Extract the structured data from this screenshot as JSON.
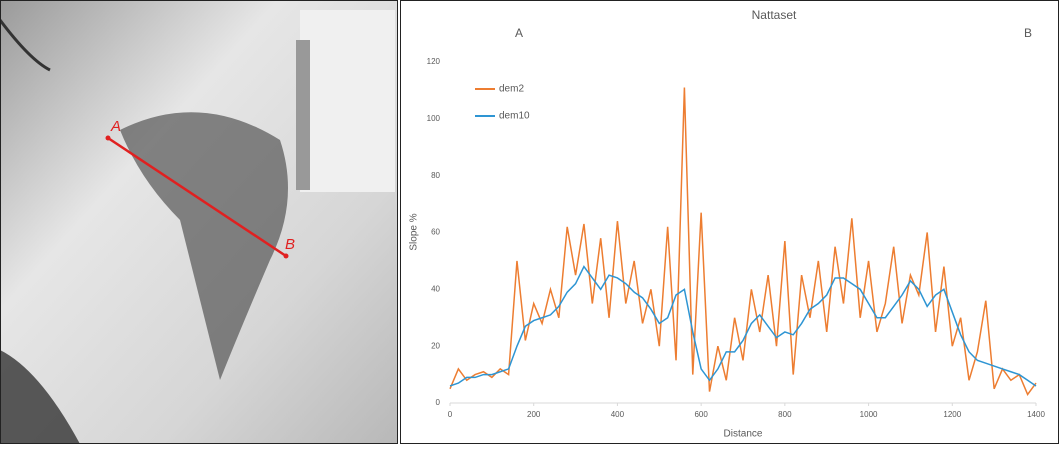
{
  "map": {
    "point_labels": [
      "A",
      "B"
    ]
  },
  "chart_data": {
    "type": "line",
    "title": "Nattaset",
    "annotations": [
      "A",
      "B"
    ],
    "x_label": "Distance",
    "y_label": "Slope %",
    "x": [
      0,
      20,
      40,
      60,
      80,
      100,
      120,
      140,
      160,
      180,
      200,
      220,
      240,
      260,
      280,
      300,
      320,
      340,
      360,
      380,
      400,
      420,
      440,
      460,
      480,
      500,
      520,
      540,
      560,
      580,
      600,
      620,
      640,
      660,
      680,
      700,
      720,
      740,
      760,
      780,
      800,
      820,
      840,
      860,
      880,
      900,
      920,
      940,
      960,
      980,
      1000,
      1020,
      1040,
      1060,
      1080,
      1100,
      1120,
      1140,
      1160,
      1180,
      1200,
      1220,
      1240,
      1260,
      1280,
      1300,
      1320,
      1340,
      1360,
      1380,
      1400
    ],
    "series": [
      {
        "name": "dem2",
        "color": "#ed7d31",
        "values": [
          5,
          12,
          8,
          10,
          11,
          9,
          12,
          10,
          50,
          22,
          35,
          28,
          40,
          30,
          62,
          45,
          63,
          35,
          58,
          30,
          64,
          35,
          50,
          28,
          40,
          20,
          62,
          15,
          111,
          10,
          67,
          4,
          20,
          8,
          30,
          15,
          40,
          25,
          45,
          20,
          57,
          10,
          45,
          30,
          50,
          25,
          55,
          35,
          65,
          30,
          50,
          25,
          35,
          55,
          28,
          45,
          38,
          60,
          25,
          48,
          20,
          30,
          8,
          18,
          36,
          5,
          12,
          8,
          10,
          3,
          7
        ]
      },
      {
        "name": "dem10",
        "color": "#2e95d3",
        "values": [
          6,
          7,
          9,
          9,
          10,
          10,
          11,
          12,
          20,
          27,
          29,
          30,
          31,
          34,
          39,
          42,
          48,
          44,
          40,
          45,
          44,
          42,
          39,
          37,
          33,
          28,
          30,
          38,
          40,
          25,
          12,
          8,
          12,
          18,
          18,
          22,
          28,
          31,
          27,
          23,
          25,
          24,
          28,
          33,
          35,
          38,
          44,
          44,
          42,
          40,
          35,
          30,
          30,
          34,
          38,
          43,
          40,
          34,
          38,
          40,
          32,
          24,
          18,
          15,
          14,
          13,
          12,
          11,
          10,
          8,
          6
        ]
      }
    ],
    "xlim": [
      0,
      1400
    ],
    "xticks": [
      0,
      200,
      400,
      600,
      800,
      1000,
      1200,
      1400
    ],
    "ylim": [
      0,
      120
    ],
    "yticks": [
      0,
      20,
      40,
      60,
      80,
      100,
      120
    ],
    "grid": false,
    "legend": "top-left"
  }
}
